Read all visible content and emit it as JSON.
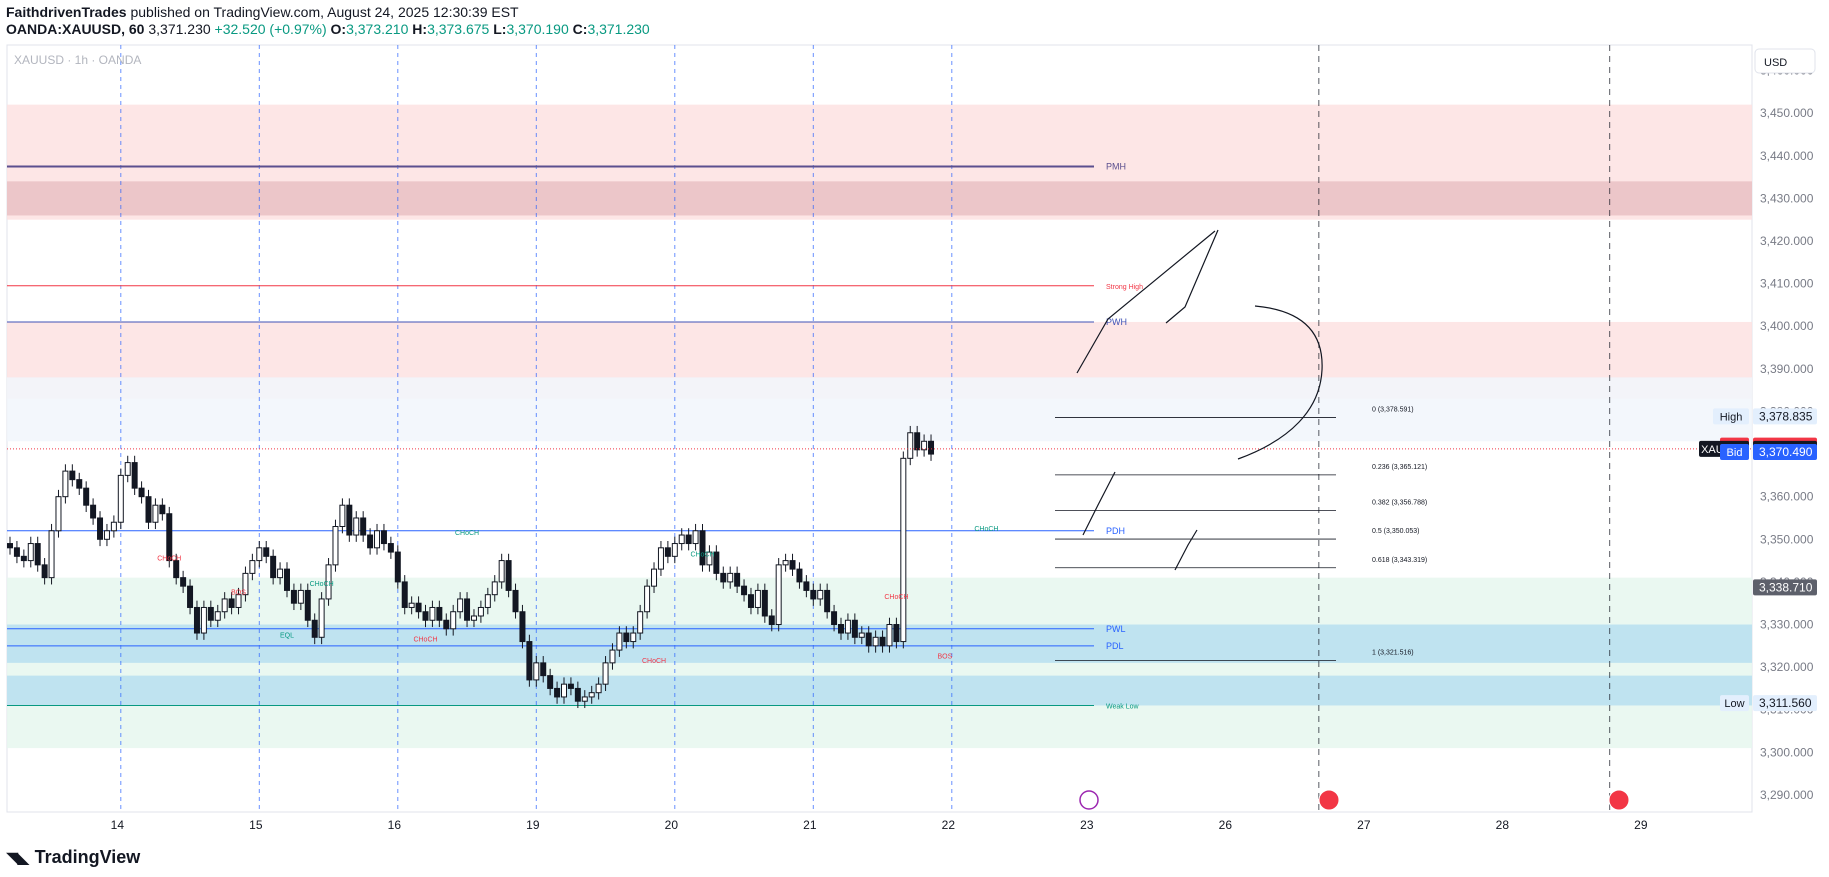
{
  "header": {
    "author": "FaithdrivenTrades",
    "published_text": "published on TradingView.com, August 24, 2025 12:30:39 EST",
    "symbol_line": "OANDA:XAUUSD, 60",
    "last": "3,371.230",
    "change": "+32.520 (+0.97%)",
    "open_label": "O:",
    "open": "3,373.210",
    "high_label": "H:",
    "high": "3,373.675",
    "low_label": "L:",
    "low": "3,370.190",
    "close_label": "C:",
    "close": "3,371.230"
  },
  "footer": {
    "brand": "TradingView",
    "logo_glyph": "◥◣"
  },
  "chart_data": {
    "type": "candlestick",
    "title": "XAUUSD · 1h · OANDA",
    "currency": "USD",
    "ylim": [
      3286,
      3466
    ],
    "y_ticks": [
      3290,
      3300,
      3310,
      3320,
      3330,
      3340,
      3350,
      3360,
      3370,
      3380,
      3390,
      3400,
      3410,
      3420,
      3430,
      3440,
      3450,
      3460
    ],
    "x_ticks": [
      {
        "label": "14",
        "idx": 16
      },
      {
        "label": "15",
        "idx": 36
      },
      {
        "label": "16",
        "idx": 56
      },
      {
        "label": "19",
        "idx": 76
      },
      {
        "label": "20",
        "idx": 96
      },
      {
        "label": "21",
        "idx": 116
      },
      {
        "label": "22",
        "idx": 136
      },
      {
        "label": "23",
        "idx": 156
      },
      {
        "label": "26",
        "idx": 176
      },
      {
        "label": "27",
        "idx": 196
      },
      {
        "label": "28",
        "idx": 216
      },
      {
        "label": "29",
        "idx": 236
      }
    ],
    "day_separators_idx": [
      17,
      37,
      57,
      77,
      97,
      117,
      137
    ],
    "future_separators_idx": [
      189,
      231
    ],
    "candles_close": [
      3348,
      3346,
      3345,
      3349,
      3344,
      3341,
      3352,
      3360,
      3366,
      3364,
      3362,
      3358,
      3355,
      3350,
      3352,
      3354,
      3365,
      3368,
      3362,
      3360,
      3354,
      3358,
      3356,
      3345,
      3341,
      3339,
      3334,
      3328,
      3334,
      3331,
      3333,
      3336,
      3334,
      3337,
      3342,
      3345,
      3348,
      3346,
      3341,
      3343,
      3338,
      3335,
      3338,
      3331,
      3327,
      3336,
      3344,
      3353,
      3358,
      3351,
      3355,
      3351,
      3348,
      3352,
      3349,
      3347,
      3340,
      3334,
      3335,
      3333,
      3331,
      3334,
      3331,
      3329,
      3333,
      3336,
      3331,
      3332,
      3334,
      3337,
      3340,
      3345,
      3338,
      3333,
      3326,
      3317,
      3321,
      3318,
      3315,
      3313,
      3316,
      3315,
      3312,
      3313,
      3314,
      3316,
      3321,
      3324,
      3328,
      3326,
      3328,
      3333,
      3339,
      3343,
      3348,
      3346,
      3349,
      3351,
      3349,
      3352,
      3344,
      3347,
      3342,
      3340,
      3342,
      3339,
      3337,
      3334,
      3338,
      3332,
      3330,
      3344,
      3345,
      3343,
      3340,
      3338,
      3336,
      3338,
      3333,
      3330,
      3328,
      3331,
      3327,
      3328,
      3325,
      3327,
      3325,
      3330,
      3326,
      3369,
      3375,
      3371,
      3373,
      3370
    ],
    "price_markers": [
      {
        "label": "High",
        "value": "3,378.835",
        "price": 3378.835,
        "color": "#e3effd",
        "text_color": "#131722"
      },
      {
        "label": "Ask",
        "value": "3,371.970",
        "price": 3371.97,
        "color": "#f23645",
        "text_color": "#ffffff"
      },
      {
        "label": "XAUUSD",
        "value": "3,371.230",
        "price": 3371.23,
        "color": "#131722",
        "text_color": "#ffffff"
      },
      {
        "label": "Bid",
        "value": "3,370.490",
        "price": 3370.49,
        "color": "#2962ff",
        "text_color": "#ffffff"
      },
      {
        "label": "",
        "value": "3,338.710",
        "price": 3338.71,
        "color": "#5d606b",
        "text_color": "#ffffff"
      },
      {
        "label": "Low",
        "value": "3,311.560",
        "price": 3311.56,
        "color": "#e3effd",
        "text_color": "#131722"
      }
    ],
    "zones": [
      {
        "from": 3425,
        "to": 3452,
        "color": "#fde2e2"
      },
      {
        "from": 3426,
        "to": 3434,
        "color": "#e9bfc3"
      },
      {
        "from": 3383,
        "to": 3401,
        "color": "#fde2e2"
      },
      {
        "from": 3373,
        "to": 3388,
        "color": "#f1f6fb"
      },
      {
        "from": 3301,
        "to": 3341,
        "color": "#e6f7ee"
      },
      {
        "from": 3321,
        "to": 3330,
        "color": "#b7dff0"
      },
      {
        "from": 3311,
        "to": 3318,
        "color": "#b7dff0"
      }
    ],
    "levels": [
      {
        "label": "PMH",
        "price": 3437.5,
        "color": "#5b4f8f"
      },
      {
        "label": "Strong High",
        "price": 3409.5,
        "color": "#f23645"
      },
      {
        "label": "PWH",
        "price": 3401,
        "color": "#3f51b5"
      },
      {
        "label": "PDH",
        "price": 3352,
        "color": "#2962ff"
      },
      {
        "label": "PWL",
        "price": 3329,
        "color": "#2962ff"
      },
      {
        "label": "PDL",
        "price": 3325,
        "color": "#2962ff"
      },
      {
        "label": "Weak Low",
        "price": 3311,
        "color": "#089981"
      }
    ],
    "fib_levels": [
      {
        "label": "0 (3,378.591)",
        "price": 3378.591
      },
      {
        "label": "0.236 (3,365.121)",
        "price": 3365.121
      },
      {
        "label": "0.382 (3,356.788)",
        "price": 3356.788
      },
      {
        "label": "0.5 (3,350.053)",
        "price": 3350.053
      },
      {
        "label": "0.618 (3,343.319)",
        "price": 3343.319
      },
      {
        "label": "1 (3,321.516)",
        "price": 3321.516
      }
    ],
    "structure_labels": [
      {
        "text": "CHoCH",
        "idx": 23,
        "price": 3345,
        "color": "#f23645"
      },
      {
        "text": "BOS",
        "idx": 33,
        "price": 3337,
        "color": "#f23645"
      },
      {
        "text": "CHoCH",
        "idx": 45,
        "price": 3339,
        "color": "#089981"
      },
      {
        "text": "CHoCH",
        "idx": 60,
        "price": 3326,
        "color": "#f23645"
      },
      {
        "text": "CHoCH",
        "idx": 66,
        "price": 3351,
        "color": "#089981"
      },
      {
        "text": "EQL",
        "idx": 40,
        "price": 3327,
        "color": "#089981"
      },
      {
        "text": "CHoCH",
        "idx": 93,
        "price": 3321,
        "color": "#f23645"
      },
      {
        "text": "CHoCH",
        "idx": 100,
        "price": 3346,
        "color": "#089981"
      },
      {
        "text": "CHoCH",
        "idx": 128,
        "price": 3336,
        "color": "#f23645"
      },
      {
        "text": "CHoCH",
        "idx": 141,
        "price": 3352,
        "color": "#089981"
      },
      {
        "text": "BOS",
        "idx": 135,
        "price": 3322,
        "color": "#f23645"
      }
    ],
    "legend": "none",
    "grid": false
  }
}
